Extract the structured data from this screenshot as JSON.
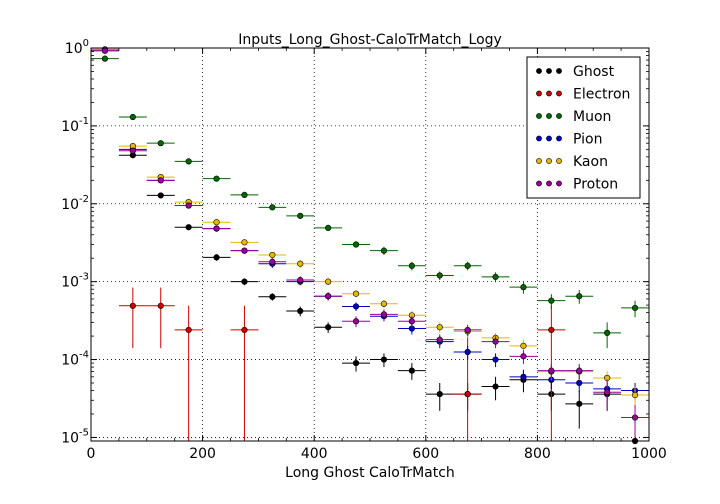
{
  "chart_data": {
    "type": "scatter",
    "title": "Inputs_Long_Ghost-CaloTrMatch_Logy",
    "xlabel": "Long Ghost CaloTrMatch",
    "ylabel": "",
    "xlim": [
      0,
      1000
    ],
    "ylim": [
      9e-06,
      1.0
    ],
    "yscale": "log",
    "grid": true,
    "legend_position": "top-right",
    "bin_halfwidth": 25,
    "x_ticks": [
      {
        "value": 0,
        "label": "0"
      },
      {
        "value": 200,
        "label": "200"
      },
      {
        "value": 400,
        "label": "400"
      },
      {
        "value": 600,
        "label": "600"
      },
      {
        "value": 800,
        "label": "800"
      },
      {
        "value": 1000,
        "label": "1000"
      }
    ],
    "y_ticks": [
      {
        "value": 1.0,
        "base": "10",
        "exp": "0"
      },
      {
        "value": 0.1,
        "base": "10",
        "exp": "-1"
      },
      {
        "value": 0.01,
        "base": "10",
        "exp": "-2"
      },
      {
        "value": 0.001,
        "base": "10",
        "exp": "-3"
      },
      {
        "value": 0.0001,
        "base": "10",
        "exp": "-4"
      },
      {
        "value": 1e-05,
        "base": "10",
        "exp": "-5"
      }
    ],
    "series": [
      {
        "name": "Ghost",
        "color": "#000000",
        "points": [
          {
            "x": 25,
            "y": 0.94
          },
          {
            "x": 75,
            "y": 0.042,
            "lo": 0.039,
            "hi": 0.045
          },
          {
            "x": 125,
            "y": 0.0128,
            "lo": 0.0118,
            "hi": 0.0138
          },
          {
            "x": 175,
            "y": 0.005,
            "lo": 0.0046,
            "hi": 0.0054
          },
          {
            "x": 225,
            "y": 0.00205,
            "lo": 0.00185,
            "hi": 0.00225
          },
          {
            "x": 275,
            "y": 0.001,
            "lo": 0.0009,
            "hi": 0.0011
          },
          {
            "x": 325,
            "y": 0.00064,
            "lo": 0.00057,
            "hi": 0.00071
          },
          {
            "x": 375,
            "y": 0.00042,
            "lo": 0.00036,
            "hi": 0.00048
          },
          {
            "x": 425,
            "y": 0.00026,
            "lo": 0.00022,
            "hi": 0.0003
          },
          {
            "x": 475,
            "y": 9e-05,
            "lo": 7e-05,
            "hi": 0.00011
          },
          {
            "x": 525,
            "y": 0.0001,
            "lo": 8e-05,
            "hi": 0.00012
          },
          {
            "x": 575,
            "y": 7.2e-05,
            "lo": 5.5e-05,
            "hi": 9e-05
          },
          {
            "x": 625,
            "y": 3.6e-05,
            "lo": 2.2e-05,
            "hi": 5e-05
          },
          {
            "x": 675,
            "y": 3.6e-05,
            "lo": 2.2e-05,
            "hi": 5e-05
          },
          {
            "x": 725,
            "y": 4.5e-05,
            "lo": 3e-05,
            "hi": 6e-05
          },
          {
            "x": 775,
            "y": 5.5e-05,
            "lo": 3.8e-05,
            "hi": 7.2e-05
          },
          {
            "x": 825,
            "y": 3.6e-05,
            "lo": 2.2e-05,
            "hi": 5e-05
          },
          {
            "x": 875,
            "y": 2.7e-05,
            "lo": 1.3e-05,
            "hi": 4e-05
          },
          {
            "x": 925,
            "y": 3.6e-05,
            "lo": 2.2e-05,
            "hi": 5e-05
          },
          {
            "x": 975,
            "y": 9e-06
          }
        ]
      },
      {
        "name": "Electron",
        "color": "#cc0000",
        "points": [
          {
            "x": 25,
            "y": 0.96
          },
          {
            "x": 75,
            "y": 0.00049,
            "lo": 0.00014,
            "hi": 0.00084
          },
          {
            "x": 125,
            "y": 0.00049,
            "lo": 0.00014,
            "hi": 0.00084
          },
          {
            "x": 175,
            "y": 0.00024,
            "lo": 9e-06,
            "hi": 0.00049
          },
          {
            "x": 275,
            "y": 0.00024,
            "lo": 9e-06,
            "hi": 0.00049
          },
          {
            "x": 675,
            "y": 3.6e-05,
            "lo": 9e-06,
            "hi": 0.00024
          },
          {
            "x": 825,
            "y": 0.00024,
            "lo": 9e-06,
            "hi": 0.00049
          }
        ]
      },
      {
        "name": "Muon",
        "color": "#006600",
        "points": [
          {
            "x": 25,
            "y": 0.73,
            "lo": 0.71,
            "hi": 0.75
          },
          {
            "x": 75,
            "y": 0.13,
            "lo": 0.127,
            "hi": 0.133
          },
          {
            "x": 125,
            "y": 0.06,
            "lo": 0.058,
            "hi": 0.062
          },
          {
            "x": 175,
            "y": 0.035,
            "lo": 0.034,
            "hi": 0.036
          },
          {
            "x": 225,
            "y": 0.021,
            "lo": 0.0205,
            "hi": 0.0215
          },
          {
            "x": 275,
            "y": 0.013,
            "lo": 0.0126,
            "hi": 0.0134
          },
          {
            "x": 325,
            "y": 0.009,
            "lo": 0.0087,
            "hi": 0.0093
          },
          {
            "x": 375,
            "y": 0.007,
            "lo": 0.0067,
            "hi": 0.0073
          },
          {
            "x": 425,
            "y": 0.0049,
            "lo": 0.0047,
            "hi": 0.0051
          },
          {
            "x": 475,
            "y": 0.003,
            "lo": 0.0028,
            "hi": 0.0032
          },
          {
            "x": 525,
            "y": 0.0025,
            "lo": 0.0022,
            "hi": 0.0028
          },
          {
            "x": 575,
            "y": 0.0016,
            "lo": 0.0014,
            "hi": 0.0018
          },
          {
            "x": 625,
            "y": 0.0012,
            "lo": 0.00105,
            "hi": 0.00135
          },
          {
            "x": 675,
            "y": 0.0016,
            "lo": 0.0014,
            "hi": 0.0018
          },
          {
            "x": 725,
            "y": 0.00115,
            "lo": 0.00098,
            "hi": 0.00132
          },
          {
            "x": 775,
            "y": 0.00085,
            "lo": 0.0007,
            "hi": 0.001
          },
          {
            "x": 825,
            "y": 0.00057,
            "lo": 0.00045,
            "hi": 0.00069
          },
          {
            "x": 875,
            "y": 0.00065,
            "lo": 0.00052,
            "hi": 0.00078
          },
          {
            "x": 925,
            "y": 0.00022,
            "lo": 0.00014,
            "hi": 0.0003
          },
          {
            "x": 975,
            "y": 0.00046,
            "lo": 0.00035,
            "hi": 0.00057
          }
        ]
      },
      {
        "name": "Pion",
        "color": "#0000cc",
        "points": [
          {
            "x": 25,
            "y": 0.93
          },
          {
            "x": 75,
            "y": 0.05,
            "lo": 0.048,
            "hi": 0.052
          },
          {
            "x": 125,
            "y": 0.02,
            "lo": 0.019,
            "hi": 0.021
          },
          {
            "x": 175,
            "y": 0.0095,
            "lo": 0.009,
            "hi": 0.01
          },
          {
            "x": 225,
            "y": 0.0048,
            "lo": 0.0045,
            "hi": 0.0051
          },
          {
            "x": 275,
            "y": 0.0025,
            "lo": 0.0023,
            "hi": 0.0027
          },
          {
            "x": 325,
            "y": 0.0017,
            "lo": 0.0015,
            "hi": 0.0019
          },
          {
            "x": 375,
            "y": 0.001,
            "lo": 0.0009,
            "hi": 0.0011
          },
          {
            "x": 425,
            "y": 0.00065,
            "lo": 0.00058,
            "hi": 0.00072
          },
          {
            "x": 475,
            "y": 0.00048,
            "lo": 0.00042,
            "hi": 0.00054
          },
          {
            "x": 525,
            "y": 0.00036,
            "lo": 0.00031,
            "hi": 0.00041
          },
          {
            "x": 575,
            "y": 0.00025,
            "lo": 0.00021,
            "hi": 0.00029
          },
          {
            "x": 625,
            "y": 0.00017,
            "lo": 0.00014,
            "hi": 0.0002
          },
          {
            "x": 675,
            "y": 0.000125,
            "lo": 0.0001,
            "hi": 0.00015
          },
          {
            "x": 725,
            "y": 0.0001,
            "lo": 8e-05,
            "hi": 0.00012
          },
          {
            "x": 775,
            "y": 6e-05,
            "lo": 4.6e-05,
            "hi": 7.4e-05
          },
          {
            "x": 825,
            "y": 5.5e-05,
            "lo": 4.2e-05,
            "hi": 6.8e-05
          },
          {
            "x": 875,
            "y": 5e-05,
            "lo": 3.8e-05,
            "hi": 6.2e-05
          },
          {
            "x": 925,
            "y": 4.2e-05,
            "lo": 3.1e-05,
            "hi": 5.3e-05
          },
          {
            "x": 975,
            "y": 4e-05,
            "lo": 3e-05,
            "hi": 5e-05
          }
        ]
      },
      {
        "name": "Kaon",
        "color": "#e6b800",
        "points": [
          {
            "x": 25,
            "y": 0.95
          },
          {
            "x": 75,
            "y": 0.055,
            "lo": 0.053,
            "hi": 0.057
          },
          {
            "x": 125,
            "y": 0.022,
            "lo": 0.021,
            "hi": 0.023
          },
          {
            "x": 175,
            "y": 0.0105,
            "lo": 0.01,
            "hi": 0.011
          },
          {
            "x": 225,
            "y": 0.0058,
            "lo": 0.0055,
            "hi": 0.0061
          },
          {
            "x": 275,
            "y": 0.0032,
            "lo": 0.003,
            "hi": 0.0034
          },
          {
            "x": 325,
            "y": 0.0022,
            "lo": 0.002,
            "hi": 0.0024
          },
          {
            "x": 375,
            "y": 0.0017,
            "lo": 0.0015,
            "hi": 0.0019
          },
          {
            "x": 425,
            "y": 0.001,
            "lo": 0.0009,
            "hi": 0.0011
          },
          {
            "x": 475,
            "y": 0.0007,
            "lo": 0.00063,
            "hi": 0.00077
          },
          {
            "x": 525,
            "y": 0.00052,
            "lo": 0.00046,
            "hi": 0.00058
          },
          {
            "x": 575,
            "y": 0.00037,
            "lo": 0.00032,
            "hi": 0.00042
          },
          {
            "x": 625,
            "y": 0.00026,
            "lo": 0.00022,
            "hi": 0.0003
          },
          {
            "x": 675,
            "y": 0.00023,
            "lo": 0.00019,
            "hi": 0.00027
          },
          {
            "x": 725,
            "y": 0.00019,
            "lo": 0.00016,
            "hi": 0.00022
          },
          {
            "x": 775,
            "y": 0.00015,
            "lo": 0.00012,
            "hi": 0.00018
          },
          {
            "x": 825,
            "y": 7e-05,
            "lo": 5.5e-05,
            "hi": 8.5e-05
          },
          {
            "x": 875,
            "y": 7e-05,
            "lo": 5.5e-05,
            "hi": 8.5e-05
          },
          {
            "x": 925,
            "y": 5.8e-05,
            "lo": 4.5e-05,
            "hi": 7.1e-05
          },
          {
            "x": 975,
            "y": 3.5e-05,
            "lo": 2.5e-05,
            "hi": 4.5e-05
          }
        ]
      },
      {
        "name": "Proton",
        "color": "#990099",
        "points": [
          {
            "x": 25,
            "y": 0.92
          },
          {
            "x": 75,
            "y": 0.048,
            "lo": 0.046,
            "hi": 0.05
          },
          {
            "x": 125,
            "y": 0.02,
            "lo": 0.019,
            "hi": 0.021
          },
          {
            "x": 175,
            "y": 0.0095,
            "lo": 0.009,
            "hi": 0.01
          },
          {
            "x": 225,
            "y": 0.0048,
            "lo": 0.0045,
            "hi": 0.0051
          },
          {
            "x": 275,
            "y": 0.0025,
            "lo": 0.0023,
            "hi": 0.0027
          },
          {
            "x": 325,
            "y": 0.0018,
            "lo": 0.0016,
            "hi": 0.002
          },
          {
            "x": 375,
            "y": 0.00105,
            "lo": 0.00093,
            "hi": 0.00117
          },
          {
            "x": 425,
            "y": 0.00065,
            "lo": 0.00057,
            "hi": 0.00073
          },
          {
            "x": 475,
            "y": 0.00031,
            "lo": 0.00026,
            "hi": 0.00036
          },
          {
            "x": 525,
            "y": 0.00038,
            "lo": 0.00032,
            "hi": 0.00044
          },
          {
            "x": 575,
            "y": 0.00031,
            "lo": 0.00026,
            "hi": 0.00036
          },
          {
            "x": 625,
            "y": 0.00018,
            "lo": 0.00015,
            "hi": 0.00021
          },
          {
            "x": 675,
            "y": 0.00024,
            "lo": 0.0002,
            "hi": 0.00028
          },
          {
            "x": 725,
            "y": 0.00017,
            "lo": 0.00014,
            "hi": 0.0002
          },
          {
            "x": 775,
            "y": 0.00011,
            "lo": 8.8e-05,
            "hi": 0.000132
          },
          {
            "x": 825,
            "y": 7.2e-05,
            "lo": 5.6e-05,
            "hi": 8.8e-05
          },
          {
            "x": 875,
            "y": 7.2e-05,
            "lo": 5.6e-05,
            "hi": 8.8e-05
          },
          {
            "x": 925,
            "y": 3.8e-05,
            "lo": 2.2e-05,
            "hi": 5.5e-05
          },
          {
            "x": 975,
            "y": 1.8e-05,
            "lo": 1e-05,
            "hi": 2.6e-05
          }
        ]
      }
    ]
  }
}
